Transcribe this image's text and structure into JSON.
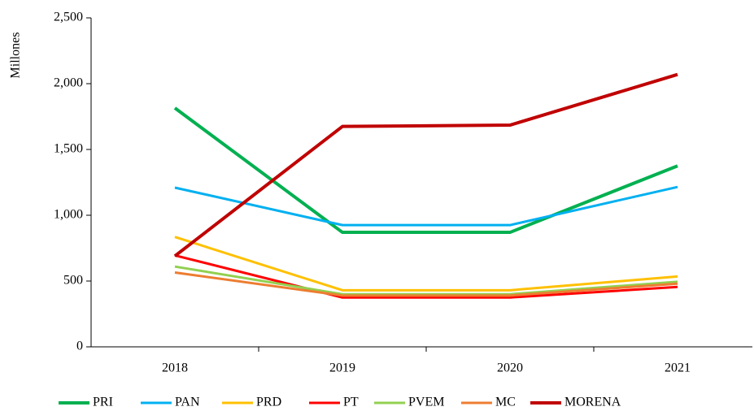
{
  "chart_data": {
    "type": "line",
    "y_label": "Millones",
    "categories": [
      "2018",
      "2019",
      "2020",
      "2021"
    ],
    "series": [
      {
        "name": "PRI",
        "color": "#00b050",
        "width": 4,
        "values": [
          1815,
          870,
          870,
          1375
        ]
      },
      {
        "name": "PAN",
        "color": "#00b0f0",
        "width": 3,
        "values": [
          1210,
          925,
          925,
          1215
        ]
      },
      {
        "name": "PRD",
        "color": "#ffc000",
        "width": 3,
        "values": [
          835,
          430,
          430,
          535
        ]
      },
      {
        "name": "PT",
        "color": "#ff0000",
        "width": 3,
        "values": [
          695,
          375,
          375,
          455
        ]
      },
      {
        "name": "PVEM",
        "color": "#92d050",
        "width": 3,
        "values": [
          610,
          400,
          400,
          495
        ]
      },
      {
        "name": "MC",
        "color": "#ed7d31",
        "width": 3,
        "values": [
          565,
          390,
          390,
          480
        ]
      },
      {
        "name": "MORENA",
        "color": "#c00000",
        "width": 4,
        "values": [
          690,
          1675,
          1685,
          2070
        ]
      }
    ],
    "ylim": [
      0,
      2500
    ],
    "yticks": [
      0,
      500,
      {
        "value": 1000,
        "label": "1,000"
      },
      {
        "value": 1500,
        "label": "1,500"
      },
      {
        "value": 2000,
        "label": "2,000"
      },
      {
        "value": 2500,
        "label": "2,500"
      }
    ],
    "grid": false,
    "legend": "bottom"
  }
}
